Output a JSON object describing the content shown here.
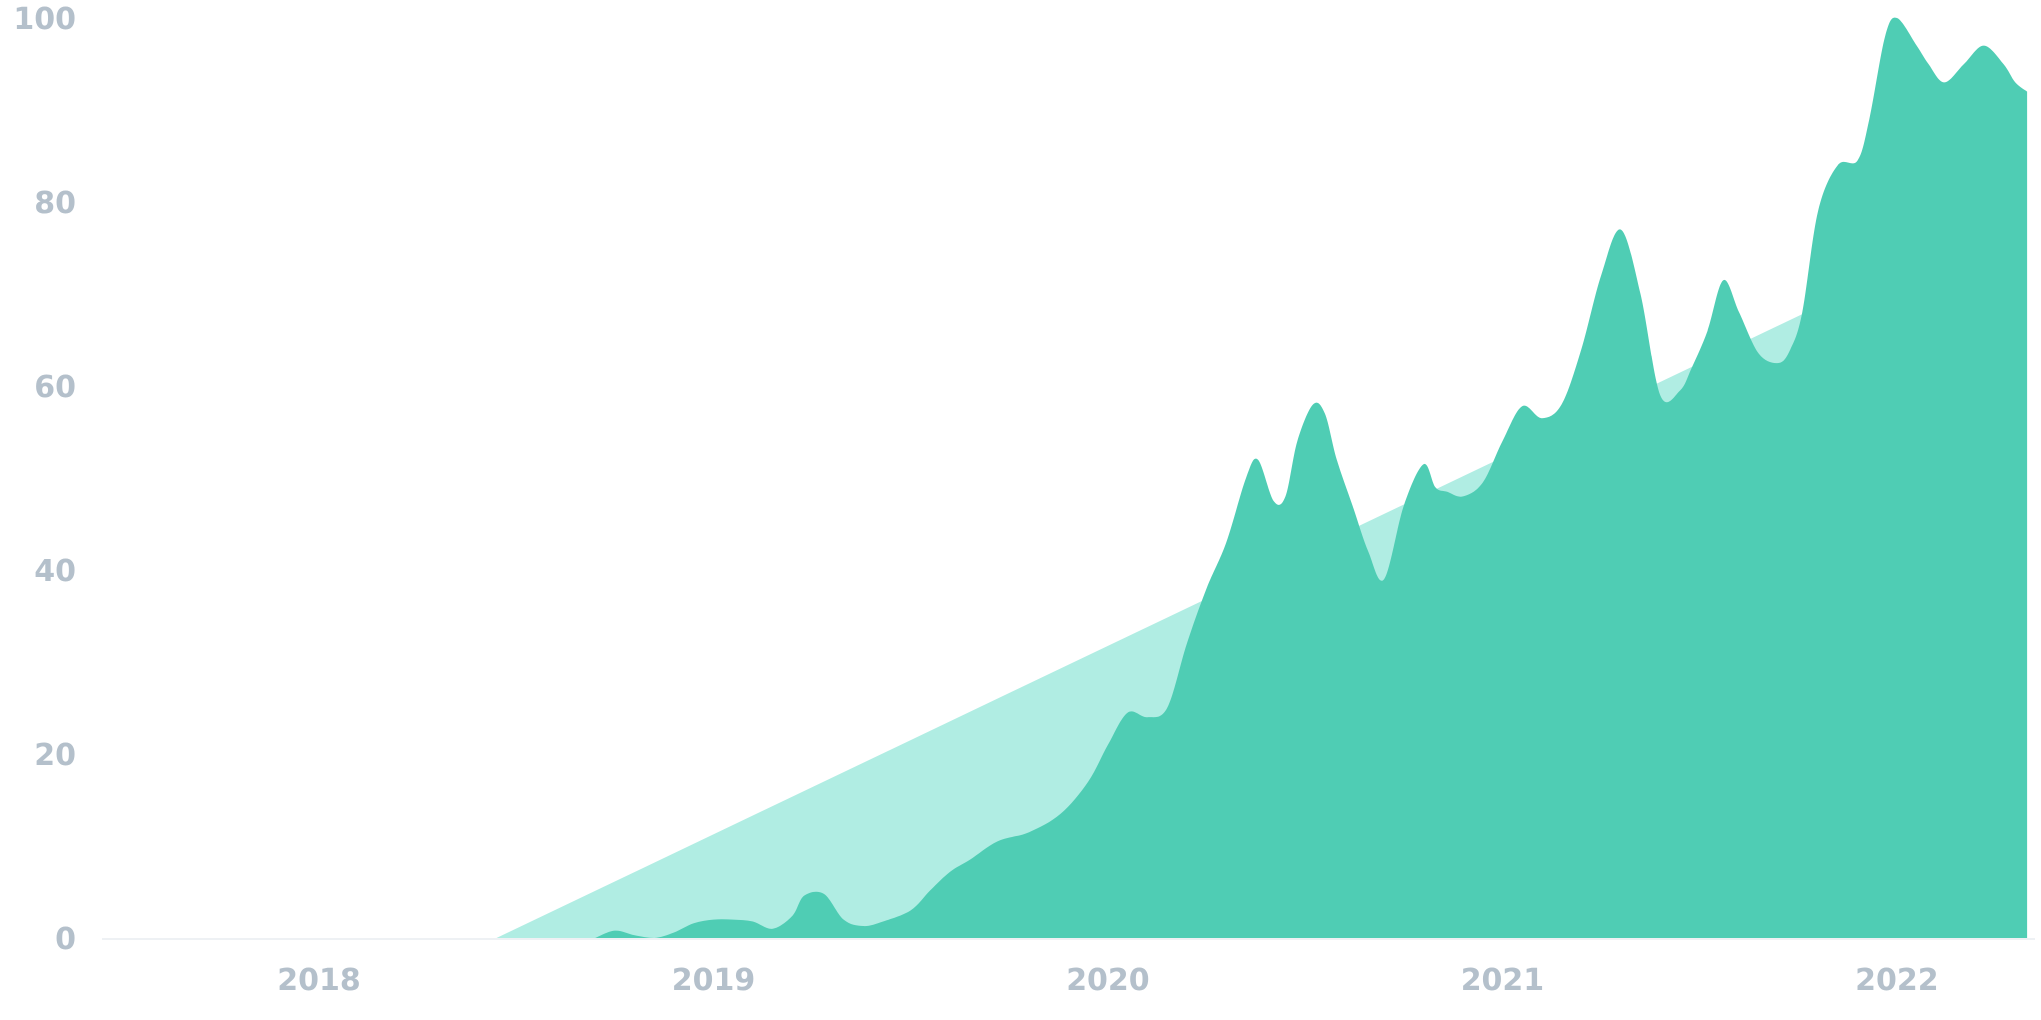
{
  "chart_data": {
    "type": "area",
    "title": "",
    "xlabel": "",
    "ylabel": "",
    "xlim": [
      2017.45,
      2022.35
    ],
    "ylim": [
      0,
      100
    ],
    "grid": false,
    "legend": "none",
    "x_ticks": [
      "2018",
      "2019",
      "2020",
      "2021",
      "2022"
    ],
    "y_ticks": [
      "0",
      "20",
      "40",
      "60",
      "80",
      "100"
    ],
    "colors": {
      "trend_fill": "#b0ede3",
      "series_fill": "#4fcdb4",
      "baseline": "#eef1f4",
      "tick_text": "#b4c0cb"
    },
    "series": [
      {
        "role": "trend",
        "x": [
          2017.45,
          2018.45,
          2021.94
        ],
        "y": [
          0,
          0,
          71.5
        ]
      },
      {
        "role": "observed",
        "x": [
          2018.7,
          2018.75,
          2018.8,
          2018.85,
          2018.9,
          2018.95,
          2019.0,
          2019.05,
          2019.1,
          2019.15,
          2019.2,
          2019.23,
          2019.28,
          2019.33,
          2019.38,
          2019.43,
          2019.5,
          2019.55,
          2019.6,
          2019.65,
          2019.72,
          2019.8,
          2019.88,
          2019.95,
          2020.0,
          2020.05,
          2020.1,
          2020.15,
          2020.2,
          2020.25,
          2020.3,
          2020.35,
          2020.38,
          2020.42,
          2020.45,
          2020.48,
          2020.52,
          2020.55,
          2020.58,
          2020.62,
          2020.66,
          2020.7,
          2020.75,
          2020.8,
          2020.83,
          2020.86,
          2020.9,
          2020.95,
          2021.0,
          2021.05,
          2021.1,
          2021.15,
          2021.2,
          2021.25,
          2021.3,
          2021.35,
          2021.4,
          2021.45,
          2021.48,
          2021.52,
          2021.56,
          2021.6,
          2021.65,
          2021.7,
          2021.73,
          2021.76,
          2021.8,
          2021.85,
          2021.9,
          2021.93,
          2021.97,
          2022.0,
          2022.05,
          2022.08,
          2022.12,
          2022.17,
          2022.22,
          2022.27,
          2022.3,
          2022.33
        ],
        "y": [
          0,
          0.8,
          0.3,
          0,
          0.6,
          1.6,
          2.0,
          2.0,
          1.8,
          1.0,
          2.4,
          4.6,
          4.8,
          2.0,
          1.3,
          1.8,
          3.0,
          5.2,
          7.2,
          8.5,
          10.5,
          11.5,
          13.5,
          17.0,
          21.0,
          24.5,
          24.0,
          25.0,
          32.0,
          38.0,
          43.0,
          50.0,
          52.0,
          47.5,
          48.0,
          54.0,
          58.0,
          57.0,
          52.0,
          47.0,
          42.0,
          39.0,
          47.0,
          51.5,
          49.0,
          48.5,
          48.0,
          49.5,
          54.0,
          57.8,
          56.5,
          58.0,
          64.0,
          72.0,
          77.0,
          70.0,
          59.0,
          59.5,
          62.0,
          66.0,
          71.5,
          68.0,
          63.5,
          62.5,
          64.0,
          68.0,
          79.0,
          84.0,
          84.5,
          89.0,
          98.0,
          100.0,
          97.0,
          95.0,
          93.0,
          95.0,
          97.0,
          95.0,
          93.0,
          92.0
        ]
      }
    ]
  }
}
